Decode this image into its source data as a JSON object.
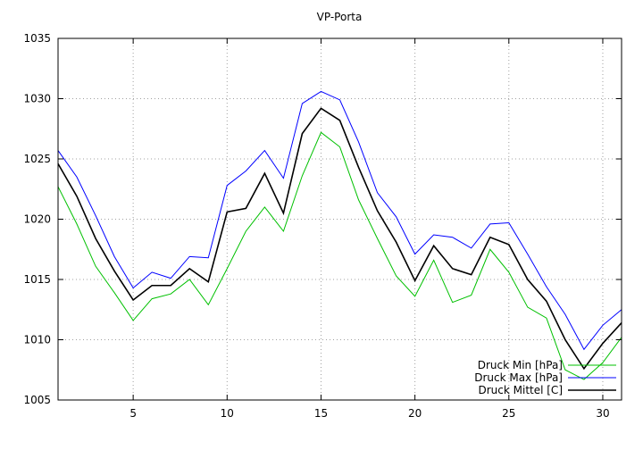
{
  "chart_data": {
    "type": "line",
    "title": "VP-Porta",
    "xlabel": "",
    "ylabel": "",
    "xlim": [
      1,
      31
    ],
    "ylim": [
      1005,
      1035
    ],
    "x_ticks": [
      5,
      10,
      15,
      20,
      25,
      30
    ],
    "y_ticks": [
      1005,
      1010,
      1015,
      1020,
      1025,
      1030,
      1035
    ],
    "grid": true,
    "legend_position": "bottom-right",
    "x": [
      1,
      2,
      3,
      4,
      5,
      6,
      7,
      8,
      9,
      10,
      11,
      12,
      13,
      14,
      15,
      16,
      17,
      18,
      19,
      20,
      21,
      22,
      23,
      24,
      25,
      26,
      27,
      28,
      29,
      30,
      31
    ],
    "series": [
      {
        "name": "Druck Min [hPa]",
        "color": "#00c000",
        "values": [
          1022.7,
          1019.6,
          1016.1,
          1013.9,
          1011.6,
          1013.4,
          1013.8,
          1015.0,
          1012.9,
          1015.9,
          1019.0,
          1021.0,
          1019.0,
          1023.6,
          1027.2,
          1026.0,
          1021.6,
          1018.4,
          1015.3,
          1013.6,
          1016.6,
          1013.1,
          1013.7,
          1017.5,
          1015.6,
          1012.7,
          1011.8,
          1007.5,
          1006.7,
          1008.1,
          1010.2
        ]
      },
      {
        "name": "Druck Max [hPa]",
        "color": "#0000ff",
        "values": [
          1025.7,
          1023.5,
          1020.3,
          1016.9,
          1014.3,
          1015.6,
          1015.1,
          1016.9,
          1016.8,
          1022.8,
          1024.0,
          1025.7,
          1023.4,
          1029.6,
          1030.6,
          1029.9,
          1026.4,
          1022.2,
          1020.2,
          1017.1,
          1018.7,
          1018.5,
          1017.6,
          1019.6,
          1019.7,
          1017.1,
          1014.4,
          1012.1,
          1009.2,
          1011.2,
          1012.5
        ]
      },
      {
        "name": "Druck Mittel [C]",
        "color": "#000000",
        "values": [
          1024.6,
          1021.9,
          1018.4,
          1015.7,
          1013.3,
          1014.5,
          1014.5,
          1015.9,
          1014.8,
          1020.6,
          1020.9,
          1023.8,
          1020.5,
          1027.1,
          1029.2,
          1028.2,
          1024.3,
          1020.7,
          1018.1,
          1014.9,
          1017.8,
          1015.9,
          1015.4,
          1018.5,
          1017.9,
          1015.0,
          1013.2,
          1010.0,
          1007.6,
          1009.7,
          1011.4
        ]
      }
    ]
  }
}
